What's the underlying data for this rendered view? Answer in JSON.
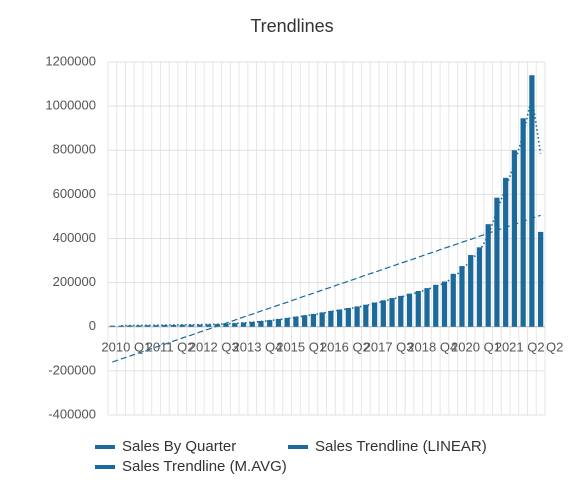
{
  "chart_data": {
    "type": "bar",
    "title": "Trendlines",
    "categories": [
      "2010 Q1",
      null,
      null,
      null,
      null,
      "2011 Q2",
      null,
      null,
      null,
      null,
      "2012 Q3",
      null,
      null,
      null,
      null,
      "2013 Q4",
      null,
      null,
      null,
      null,
      "2015 Q1",
      null,
      null,
      null,
      null,
      "2016 Q2",
      null,
      null,
      null,
      null,
      "2017 Q3",
      null,
      null,
      null,
      null,
      "2018 Q4",
      null,
      null,
      null,
      null,
      "2020 Q1",
      null,
      null,
      null,
      null,
      "2021 Q2",
      null,
      null,
      null,
      "Q2"
    ],
    "series": [
      {
        "name": "Sales By Quarter",
        "color": "#1b6a9b",
        "style": "bar",
        "values": [
          5000,
          5000,
          6000,
          6000,
          7000,
          7000,
          8000,
          8000,
          9000,
          9000,
          10000,
          11000,
          12000,
          14000,
          16000,
          19000,
          22000,
          26000,
          30000,
          35000,
          40000,
          46000,
          52000,
          58000,
          65000,
          72000,
          78000,
          85000,
          92000,
          100000,
          110000,
          120000,
          130000,
          140000,
          150000,
          162000,
          175000,
          190000,
          205000,
          240000,
          275000,
          325000,
          360000,
          465000,
          585000,
          675000,
          800000,
          945000,
          1140000,
          430000
        ]
      },
      {
        "name": "Sales Trendline (LINEAR)",
        "color": "#1b6a9b",
        "style": "dashed",
        "values": [
          -160000,
          -146000,
          -133000,
          -119000,
          -106000,
          -92000,
          -79000,
          -65000,
          -51000,
          -38000,
          -24000,
          -11000,
          3000,
          16000,
          30000,
          44000,
          57000,
          71000,
          84000,
          98000,
          111000,
          125000,
          139000,
          152000,
          166000,
          179000,
          193000,
          206000,
          220000,
          234000,
          247000,
          261000,
          274000,
          288000,
          301000,
          315000,
          329000,
          342000,
          356000,
          369000,
          383000,
          396000,
          410000,
          424000,
          437000,
          451000,
          464000,
          478000,
          491000,
          505000
        ]
      },
      {
        "name": "Sales Trendline (M.AVG)",
        "color": "#1b6a9b",
        "style": "dotted",
        "values": [
          null,
          5000,
          5500,
          6000,
          6500,
          7000,
          7500,
          8000,
          8500,
          9000,
          9500,
          10500,
          11500,
          13000,
          15000,
          17500,
          20500,
          24000,
          28000,
          32500,
          37500,
          43000,
          49000,
          55000,
          61500,
          68500,
          75000,
          81500,
          88500,
          96000,
          105000,
          115000,
          125000,
          135000,
          145000,
          156000,
          168500,
          182500,
          197500,
          222500,
          257500,
          300000,
          342500,
          412500,
          525000,
          630000,
          737500,
          872500,
          1042500,
          785000
        ]
      }
    ],
    "ylim": [
      -400000,
      1200000
    ],
    "yticks": [
      -400000,
      -200000,
      0,
      200000,
      400000,
      600000,
      800000,
      1000000,
      1200000
    ],
    "grid": true,
    "legend": "bottom"
  }
}
